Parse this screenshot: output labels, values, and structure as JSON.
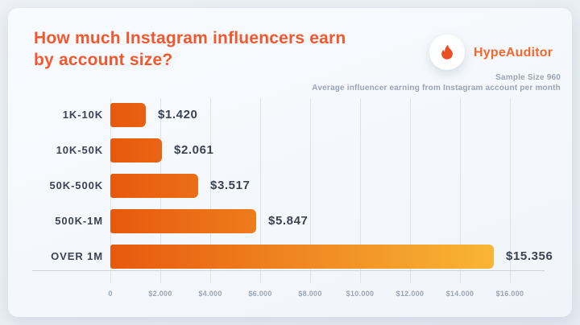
{
  "page": {
    "background": "#eaeef4",
    "card_background": "#f5f8fc"
  },
  "header": {
    "title_line1": "How much Instagram influencers earn",
    "title_line2": "by account size?",
    "title_color": "#f2572e"
  },
  "brand": {
    "name": "HypeAuditor",
    "icon": "flame-icon",
    "text_color": "#f3682c",
    "flame_color": "#e94f22"
  },
  "meta": {
    "sample_size": "Sample Size 960",
    "subtitle": "Average influencer earning from Instagram account per month"
  },
  "chart_data": {
    "type": "bar",
    "orientation": "horizontal",
    "title": "How much Instagram influencers earn by account size?",
    "categories": [
      "1K-10K",
      "10K-50K",
      "50K-500K",
      "500K-1M",
      "OVER 1M"
    ],
    "values": [
      1420,
      2061,
      3517,
      5847,
      15356
    ],
    "value_labels": [
      "$1.420",
      "$2.061",
      "$3.517",
      "$5.847",
      "$15.356"
    ],
    "xlim": [
      0,
      16000
    ],
    "x_ticks": [
      0,
      2000,
      4000,
      6000,
      8000,
      10000,
      12000,
      14000,
      16000
    ],
    "x_tick_labels": [
      "0",
      "$2.000",
      "$4.000",
      "$6.000",
      "$8.000",
      "$10.000",
      "$12.000",
      "$14.000",
      "$16.000"
    ],
    "grid": true,
    "legend": false,
    "bar_gradient_start": "#e7590e",
    "bar_gradient_end": "#f9ba37",
    "gridline_color": "#dde3eb",
    "axis_color": "#c9d2dd",
    "label_color": "#3a4254",
    "tick_color": "#99a5b5"
  }
}
